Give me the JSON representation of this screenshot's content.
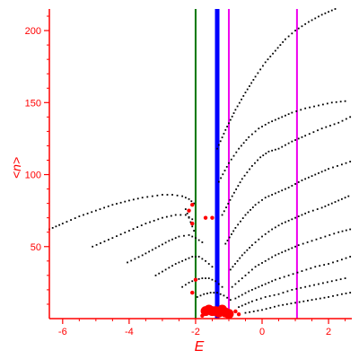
{
  "chart_data": {
    "type": "scatter",
    "xlabel": "E",
    "ylabel": "<n>",
    "xlim": [
      -6.4,
      2.7
    ],
    "ylim": [
      0,
      215
    ],
    "xticks": [
      -6,
      -4,
      -2,
      0,
      2
    ],
    "xtick_labels": [
      "-6",
      "-4",
      "-2",
      "0",
      "2"
    ],
    "yticks": [
      50,
      100,
      150,
      200
    ],
    "ytick_labels": [
      "50",
      "100",
      "150",
      "200"
    ],
    "grid": false,
    "colors": {
      "axes": "#ff0000",
      "points": "#000000",
      "highlight": "#ff0000",
      "green_line": "#007700",
      "blue_line": "#0000ff",
      "magenta_line": "#ee00ee"
    },
    "vertical_lines": [
      {
        "x": -2.0,
        "color": "#007700",
        "width": 2
      },
      {
        "x": -1.35,
        "color": "#0000ff",
        "width": 5
      },
      {
        "x": -1.0,
        "color": "#ee00ee",
        "width": 2
      },
      {
        "x": 1.05,
        "color": "#ee00ee",
        "width": 2
      }
    ],
    "series": [
      {
        "points": [
          [
            -6.4,
            62
          ],
          [
            -6.0,
            66
          ],
          [
            -5.5,
            71
          ],
          [
            -5.0,
            75
          ],
          [
            -4.5,
            79
          ],
          [
            -4.0,
            82
          ],
          [
            -3.6,
            84
          ],
          [
            -3.3,
            85
          ],
          [
            -3.0,
            86
          ],
          [
            -2.7,
            86
          ],
          [
            -2.4,
            85
          ],
          [
            -2.2,
            83
          ],
          [
            -2.05,
            80
          ]
        ]
      },
      {
        "points": [
          [
            -5.1,
            50
          ],
          [
            -4.5,
            56
          ],
          [
            -4.0,
            61
          ],
          [
            -3.5,
            66
          ],
          [
            -3.0,
            70
          ],
          [
            -2.6,
            72
          ],
          [
            -2.3,
            72
          ],
          [
            -2.1,
            69
          ]
        ]
      },
      {
        "points": [
          [
            -4.05,
            39
          ],
          [
            -3.6,
            44
          ],
          [
            -3.2,
            49
          ],
          [
            -2.8,
            54
          ],
          [
            -2.5,
            57
          ],
          [
            -2.2,
            58
          ],
          [
            -2.0,
            56
          ],
          [
            -1.8,
            53
          ]
        ]
      },
      {
        "points": [
          [
            -3.2,
            30
          ],
          [
            -2.9,
            34
          ],
          [
            -2.6,
            38
          ],
          [
            -2.3,
            41
          ],
          [
            -2.1,
            43
          ],
          [
            -1.9,
            43
          ],
          [
            -1.7,
            40
          ],
          [
            -1.5,
            36
          ]
        ]
      },
      {
        "points": [
          [
            -2.4,
            22
          ],
          [
            -2.2,
            25
          ],
          [
            -2.0,
            27
          ],
          [
            -1.8,
            28
          ],
          [
            -1.6,
            28
          ],
          [
            -1.4,
            26
          ],
          [
            -1.2,
            22
          ]
        ]
      },
      {
        "points": [
          [
            -1.95,
            15
          ],
          [
            -1.75,
            17
          ],
          [
            -1.55,
            18
          ],
          [
            -1.35,
            18
          ],
          [
            -1.15,
            16
          ],
          [
            -0.95,
            13
          ]
        ]
      },
      {
        "points": [
          [
            -2.3,
            76
          ],
          [
            -2.25,
            73
          ],
          [
            -2.2,
            70
          ],
          [
            -2.15,
            67
          ],
          [
            -2.1,
            64
          ],
          [
            -2.05,
            61
          ]
        ]
      },
      {
        "points": [
          [
            -1.35,
            118
          ],
          [
            -1.1,
            131
          ],
          [
            -0.8,
            145
          ],
          [
            -0.5,
            157
          ],
          [
            -0.2,
            168
          ],
          [
            0.1,
            178
          ],
          [
            0.4,
            186
          ],
          [
            0.7,
            194
          ],
          [
            1.0,
            200
          ],
          [
            1.4,
            206
          ],
          [
            1.8,
            211
          ],
          [
            2.2,
            215
          ]
        ]
      },
      {
        "points": [
          [
            -1.3,
            95
          ],
          [
            -1.0,
            108
          ],
          [
            -0.7,
            118
          ],
          [
            -0.4,
            126
          ],
          [
            -0.1,
            132
          ],
          [
            0.2,
            136
          ],
          [
            0.5,
            139
          ],
          [
            0.9,
            143
          ],
          [
            1.3,
            146
          ],
          [
            1.7,
            148
          ],
          [
            2.1,
            150
          ],
          [
            2.5,
            151
          ]
        ]
      },
      {
        "points": [
          [
            -1.2,
            72
          ],
          [
            -0.9,
            85
          ],
          [
            -0.6,
            97
          ],
          [
            -0.3,
            106
          ],
          [
            -0.05,
            112
          ],
          [
            0.2,
            116
          ],
          [
            0.5,
            118
          ],
          [
            0.9,
            123
          ],
          [
            1.3,
            127
          ],
          [
            1.8,
            132
          ],
          [
            2.3,
            136
          ],
          [
            2.65,
            140
          ]
        ]
      },
      {
        "points": [
          [
            -1.1,
            52
          ],
          [
            -0.8,
            63
          ],
          [
            -0.5,
            72
          ],
          [
            -0.2,
            79
          ],
          [
            0.1,
            84
          ],
          [
            0.4,
            87
          ],
          [
            0.8,
            91
          ],
          [
            1.2,
            96
          ],
          [
            1.6,
            100
          ],
          [
            2.0,
            104
          ],
          [
            2.4,
            107
          ],
          [
            2.65,
            109
          ]
        ]
      },
      {
        "points": [
          [
            -0.95,
            34
          ],
          [
            -0.6,
            44
          ],
          [
            -0.3,
            51
          ],
          [
            0.0,
            57
          ],
          [
            0.3,
            62
          ],
          [
            0.6,
            66
          ],
          [
            1.0,
            70
          ],
          [
            1.4,
            74
          ],
          [
            1.8,
            77
          ],
          [
            2.2,
            81
          ],
          [
            2.6,
            85
          ]
        ]
      },
      {
        "points": [
          [
            -0.9,
            22
          ],
          [
            -0.5,
            30
          ],
          [
            -0.2,
            36
          ],
          [
            0.1,
            40
          ],
          [
            0.4,
            44
          ],
          [
            0.7,
            47
          ],
          [
            1.1,
            51
          ],
          [
            1.5,
            54
          ],
          [
            1.9,
            57
          ],
          [
            2.3,
            60
          ],
          [
            2.65,
            62
          ]
        ]
      },
      {
        "points": [
          [
            -0.8,
            14
          ],
          [
            -0.4,
            19
          ],
          [
            0.0,
            23
          ],
          [
            0.4,
            27
          ],
          [
            0.8,
            30
          ],
          [
            1.2,
            33
          ],
          [
            1.6,
            36
          ],
          [
            2.0,
            38
          ],
          [
            2.4,
            41
          ],
          [
            2.65,
            43
          ]
        ]
      },
      {
        "points": [
          [
            -0.7,
            8
          ],
          [
            -0.3,
            12
          ],
          [
            0.1,
            15
          ],
          [
            0.5,
            17
          ],
          [
            0.9,
            20
          ],
          [
            1.3,
            22
          ],
          [
            1.7,
            24
          ],
          [
            2.1,
            26
          ],
          [
            2.5,
            28
          ]
        ]
      },
      {
        "points": [
          [
            -0.5,
            4
          ],
          [
            0.0,
            6
          ],
          [
            0.5,
            9
          ],
          [
            1.0,
            11
          ],
          [
            1.5,
            13
          ],
          [
            2.0,
            15
          ],
          [
            2.4,
            17
          ],
          [
            2.65,
            18
          ]
        ]
      }
    ],
    "highlight_points": [
      [
        -2.1,
        79
      ],
      [
        -2.2,
        75
      ],
      [
        -2.1,
        66
      ],
      [
        -1.7,
        70
      ],
      [
        -1.5,
        70
      ],
      [
        -1.4,
        4
      ],
      [
        -1.3,
        3
      ],
      [
        -1.2,
        5
      ],
      [
        -1.5,
        4
      ],
      [
        -1.6,
        5
      ],
      [
        -1.1,
        3
      ],
      [
        -1.7,
        4
      ],
      [
        -0.7,
        3
      ],
      [
        -2.1,
        18
      ],
      [
        -2.0,
        27
      ],
      [
        -0.8,
        5
      ],
      [
        -1.8,
        2
      ],
      [
        -1.0,
        2
      ]
    ]
  }
}
